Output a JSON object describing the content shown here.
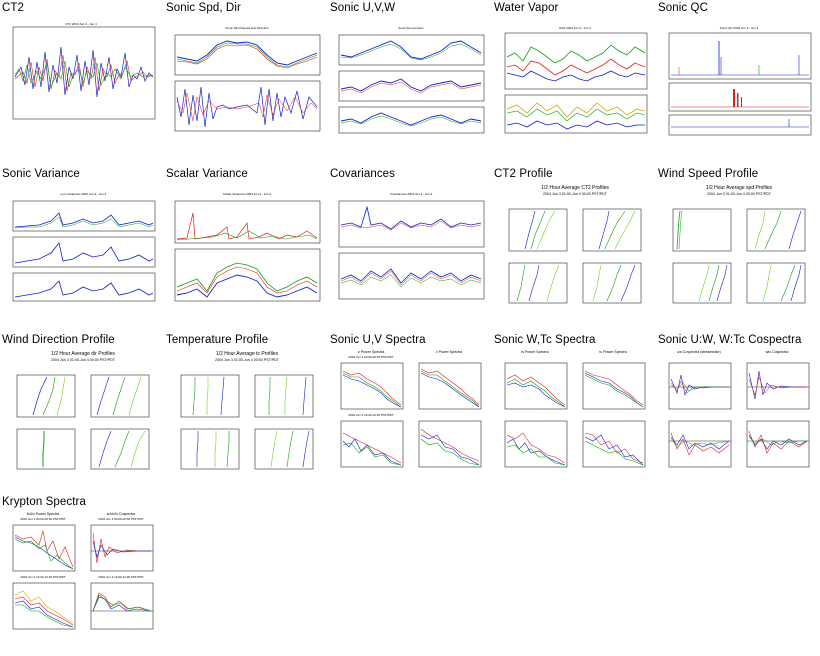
{
  "panels": [
    {
      "title": "CT2"
    },
    {
      "title": "Sonic Spd, Dir"
    },
    {
      "title": "Sonic U,V,W"
    },
    {
      "title": "Water Vapor"
    },
    {
      "title": "Sonic QC"
    },
    {
      "title": "Sonic Variance"
    },
    {
      "title": "Scalar Variance"
    },
    {
      "title": "Covariances"
    },
    {
      "title": "CT2 Profile"
    },
    {
      "title": "Wind Speed Profile"
    },
    {
      "title": "Wind Direction Profile"
    },
    {
      "title": "Temperature Profile"
    },
    {
      "title": "Sonic U,V Spectra"
    },
    {
      "title": "Sonic W,Tc Spectra"
    },
    {
      "title": "Sonic U:W, W:Tc Cospectra"
    },
    {
      "title": "Krypton Spectra"
    }
  ],
  "captions": {
    "ct2_profile": [
      "1/2 Hour Average CT2 Profiles",
      "2004 Jun 3 01:00-Jun 4 00:00 PST/PDT"
    ],
    "wind_speed_profile": [
      "1/2 Hour Average spd Profiles",
      "2004 Jun 3 01:00-Jun 4 00:00 PST/PDT"
    ],
    "wind_direction_profile": [
      "1/2 Hour Average dir Profiles",
      "2004 Jun 3 01:00-Jun 4 00:00 PST/PDT"
    ],
    "temperature_profile": [
      "1/2 Hour Average tc Profiles",
      "2004 Jun 3 01:00-Jun 4 00:00 PST/PDT"
    ],
    "uv_spectra": [
      "u Power Spectra",
      "v Power Spectra",
      "2004 Jun 3 00:00-00:30 PST/PDT",
      "2004 Jun 3 12:00-12:30 PST/PDT"
    ],
    "wtc_spectra": [
      "w Power Spectra",
      "tc Power Spectra"
    ],
    "cospectra": [
      "uw Cospectra (streamwise)",
      "wtc Cospectra"
    ],
    "krypton": [
      "kh2o Power Spectra",
      "w,kh2o Cospectra",
      "2004 Jun 3 00:00-00:30 PST/PDT",
      "2004 Jun 3 12:00-12:30 PST/PDT"
    ]
  },
  "colors": {
    "red": "#e0201c",
    "green": "#10a010",
    "blue": "#1020d0",
    "black": "#000000",
    "orange": "#e0a000",
    "lime": "#70d020"
  }
}
